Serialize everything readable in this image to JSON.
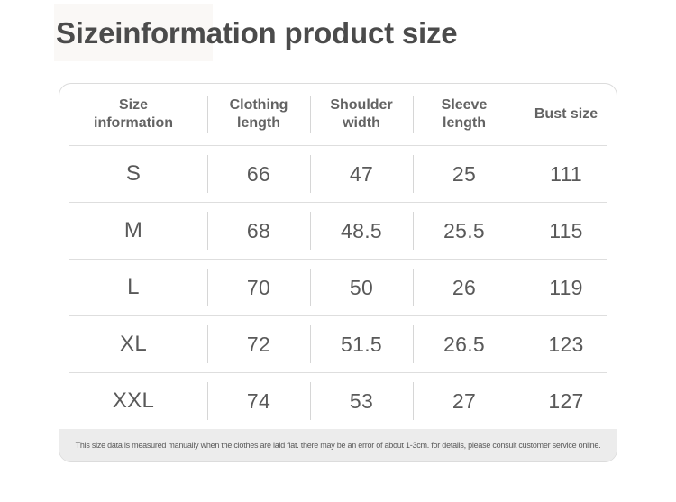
{
  "page": {
    "title": "Sizeinformation product size"
  },
  "size_table": {
    "columns": [
      "Size information",
      "Clothing length",
      "Shoulder width",
      "Sleeve length",
      "Bust size"
    ],
    "rows": [
      [
        "S",
        "66",
        "47",
        "25",
        "111"
      ],
      [
        "M",
        "68",
        "48.5",
        "25.5",
        "115"
      ],
      [
        "L",
        "70",
        "50",
        "26",
        "119"
      ],
      [
        "XL",
        "72",
        "51.5",
        "26.5",
        "123"
      ],
      [
        "XXL",
        "74",
        "53",
        "27",
        "127"
      ]
    ],
    "footnote": "This size data is measured manually when the clothes are laid flat. there may be an error of about 1-3cm. for details, please consult customer service online.",
    "colors": {
      "border": "#dcdcdc",
      "divider": "#d6d6d6",
      "footer_background": "#ececec",
      "title_text": "#4b4b4b",
      "body_text": "#595959"
    }
  },
  "chart_data": {
    "type": "table",
    "title": "Sizeinformation product size",
    "columns": [
      "Size information",
      "Clothing length",
      "Shoulder width",
      "Sleeve length",
      "Bust size"
    ],
    "rows": [
      [
        "S",
        66,
        47,
        25,
        111
      ],
      [
        "M",
        68,
        48.5,
        25.5,
        115
      ],
      [
        "L",
        70,
        50,
        26,
        119
      ],
      [
        "XL",
        72,
        51.5,
        26.5,
        123
      ],
      [
        "XXL",
        74,
        53,
        27,
        127
      ]
    ]
  }
}
